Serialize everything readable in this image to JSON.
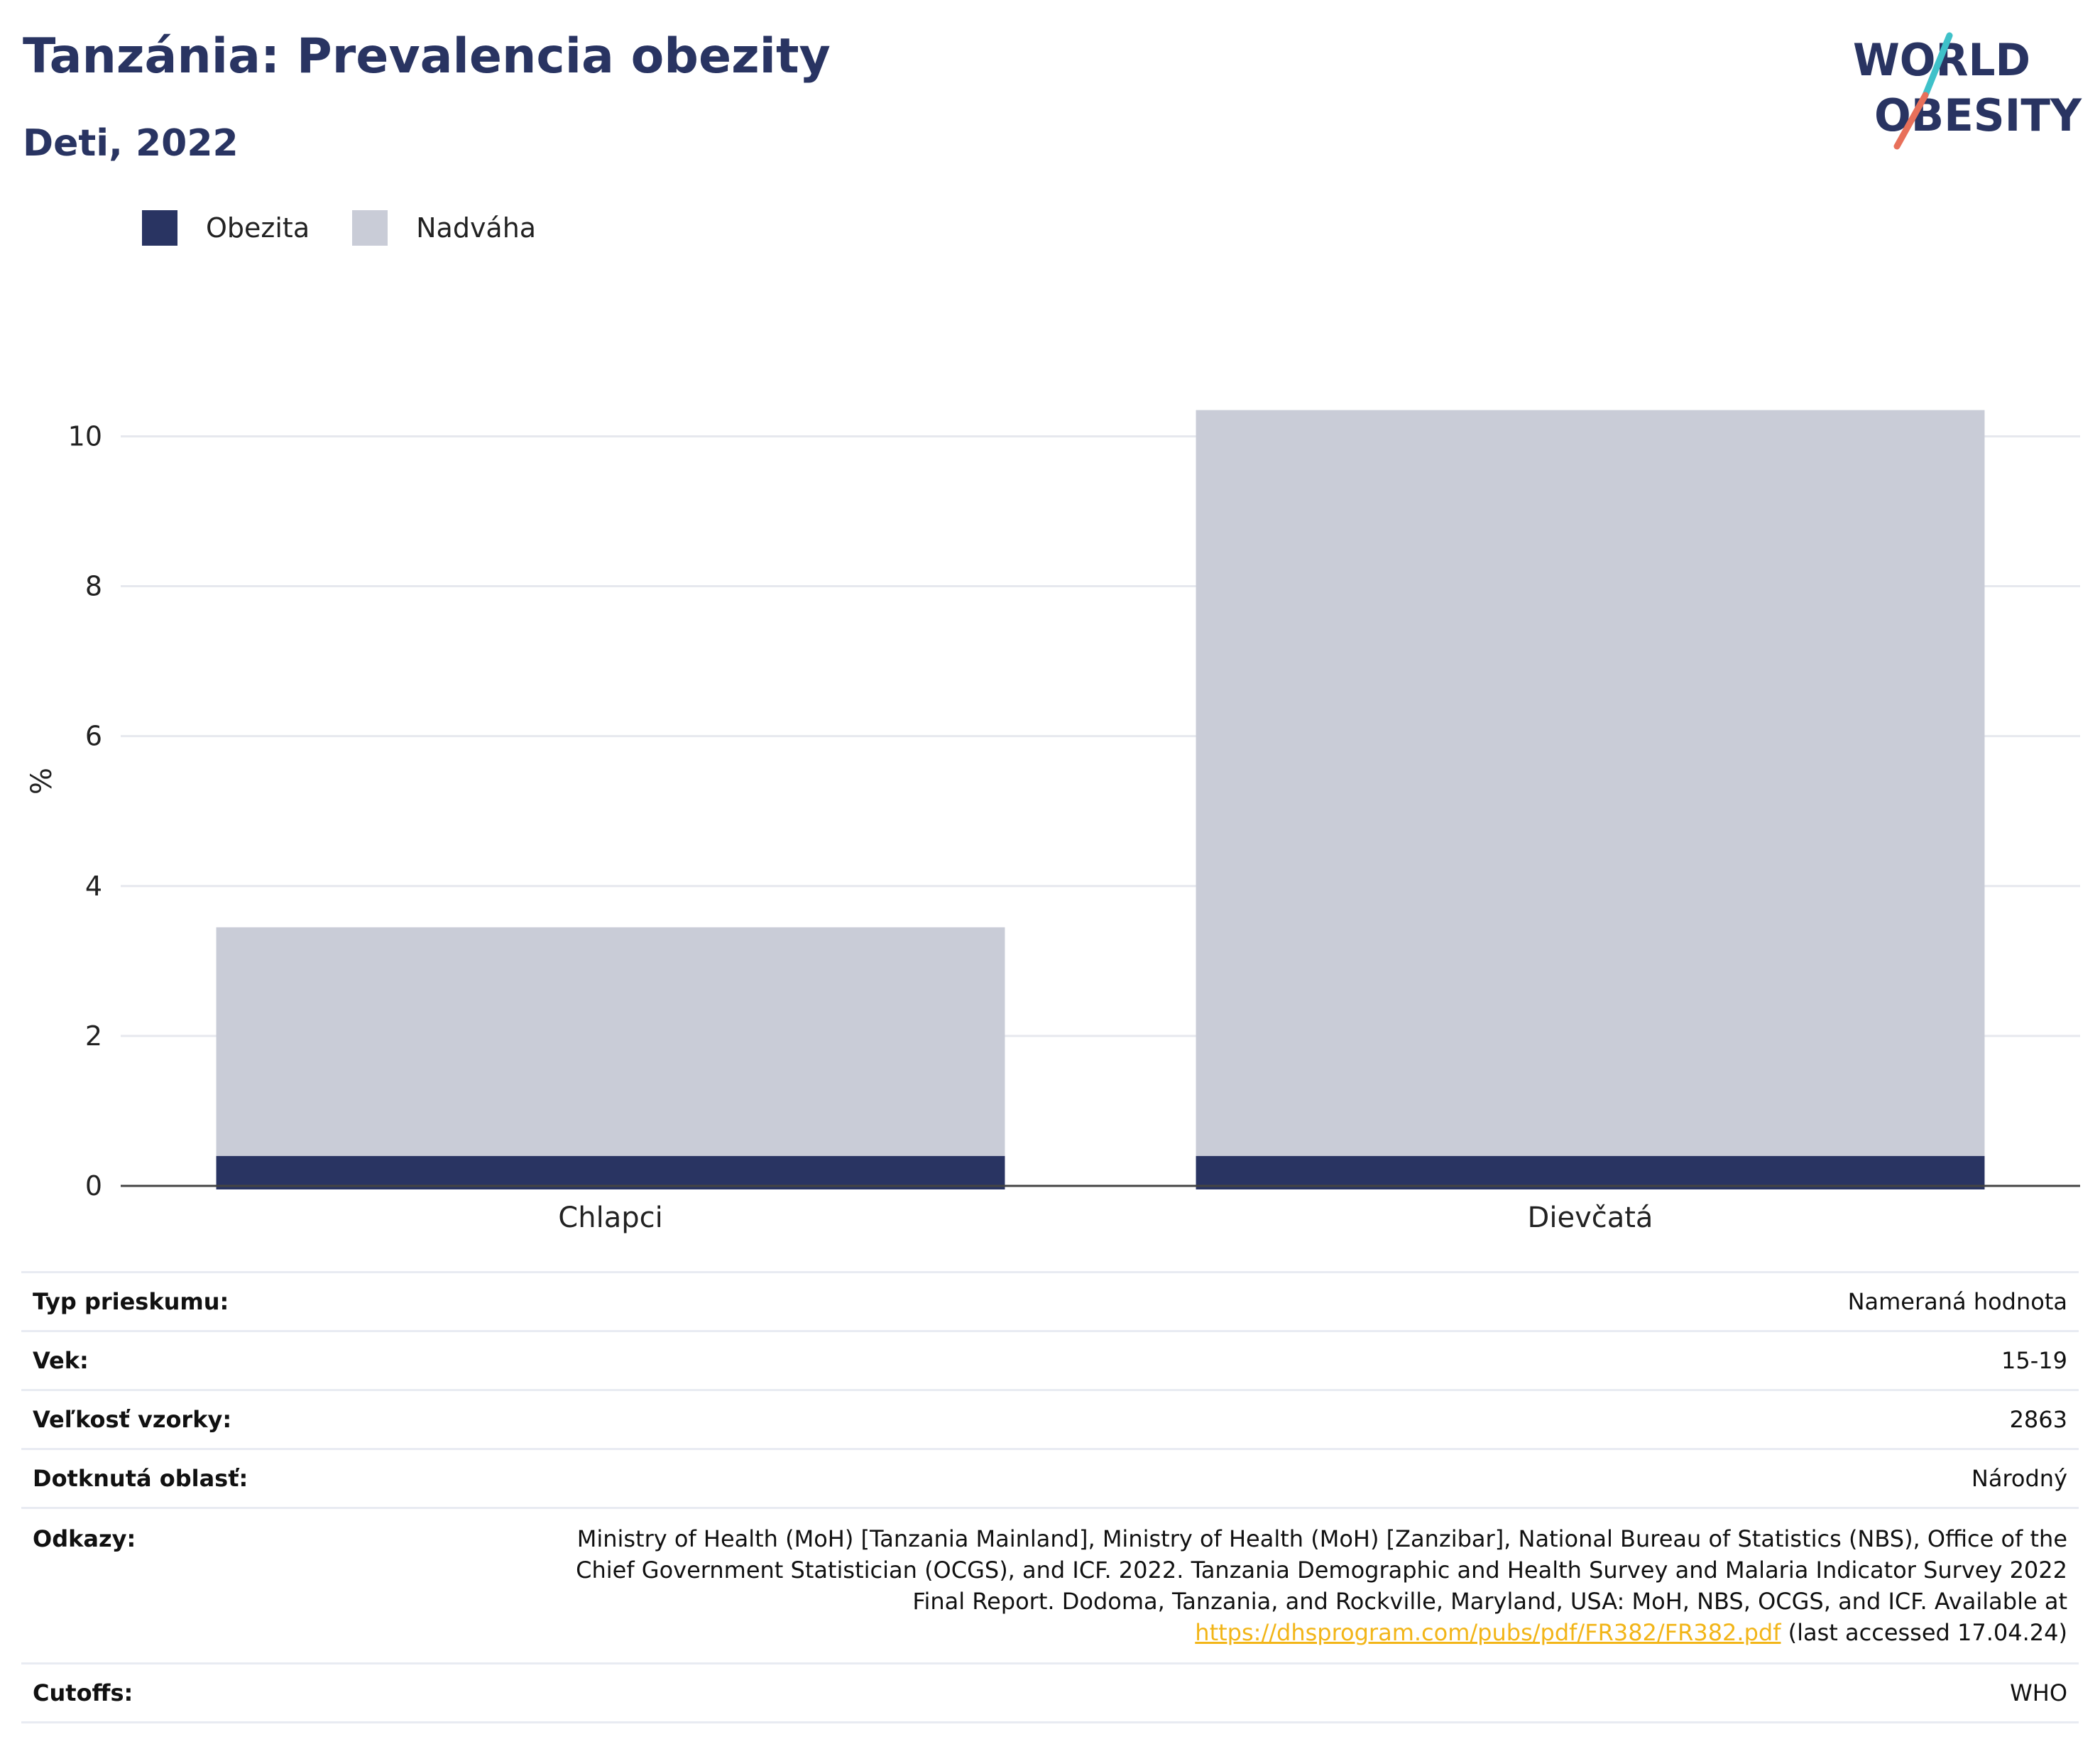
{
  "header": {
    "title": "Tanzánia: Prevalencia obezity",
    "subtitle": "Deti, 2022"
  },
  "logo": {
    "line1": "WORLD",
    "line2": "OBESITY",
    "colors": {
      "text": "#293462",
      "slash_top": "#3fc1c9",
      "slash_bottom": "#e8705a"
    }
  },
  "legend": [
    {
      "label": "Obezita",
      "color": "#293462"
    },
    {
      "label": "Nadváha",
      "color": "#c9ccd7"
    }
  ],
  "chart_data": {
    "type": "bar",
    "stacked": true,
    "categories": [
      "Chlapci",
      "Dievčatá"
    ],
    "series": [
      {
        "name": "Obezita",
        "values": [
          0.4,
          0.4
        ],
        "color": "#293462"
      },
      {
        "name": "Nadváha",
        "values": [
          3.05,
          9.95
        ],
        "color": "#c9ccd7"
      }
    ],
    "ylabel": "%",
    "ylim": [
      0,
      10.8
    ],
    "yticks": [
      0,
      2,
      4,
      6,
      8,
      10
    ],
    "grid": true,
    "legend_position": "top-left"
  },
  "meta": {
    "survey_type": {
      "key": "Typ prieskumu:",
      "value": "Nameraná hodnota"
    },
    "age": {
      "key": "Vek:",
      "value": "15-19"
    },
    "sample_size": {
      "key": "Veľkosť vzorky:",
      "value": "2863"
    },
    "area": {
      "key": "Dotknutá oblasť:",
      "value": "Národný"
    },
    "references": {
      "key": "Odkazy:",
      "line1": "Ministry of Health (MoH) [Tanzania Mainland], Ministry of Health (MoH) [Zanzibar], National Bureau of Statistics (NBS), Office of the",
      "line2": "Chief Government Statistician (OCGS), and ICF. 2022. Tanzania Demographic and Health Survey and Malaria Indicator Survey 2022",
      "line3": "Final Report. Dodoma, Tanzania, and Rockville, Maryland, USA: MoH, NBS, OCGS, and ICF. Available at",
      "link": "https://dhsprogram.com/pubs/pdf/FR382/FR382.pdf",
      "suffix": " (last accessed 17.04.24)"
    },
    "cutoffs": {
      "key": "Cutoffs:",
      "value": "WHO"
    }
  }
}
